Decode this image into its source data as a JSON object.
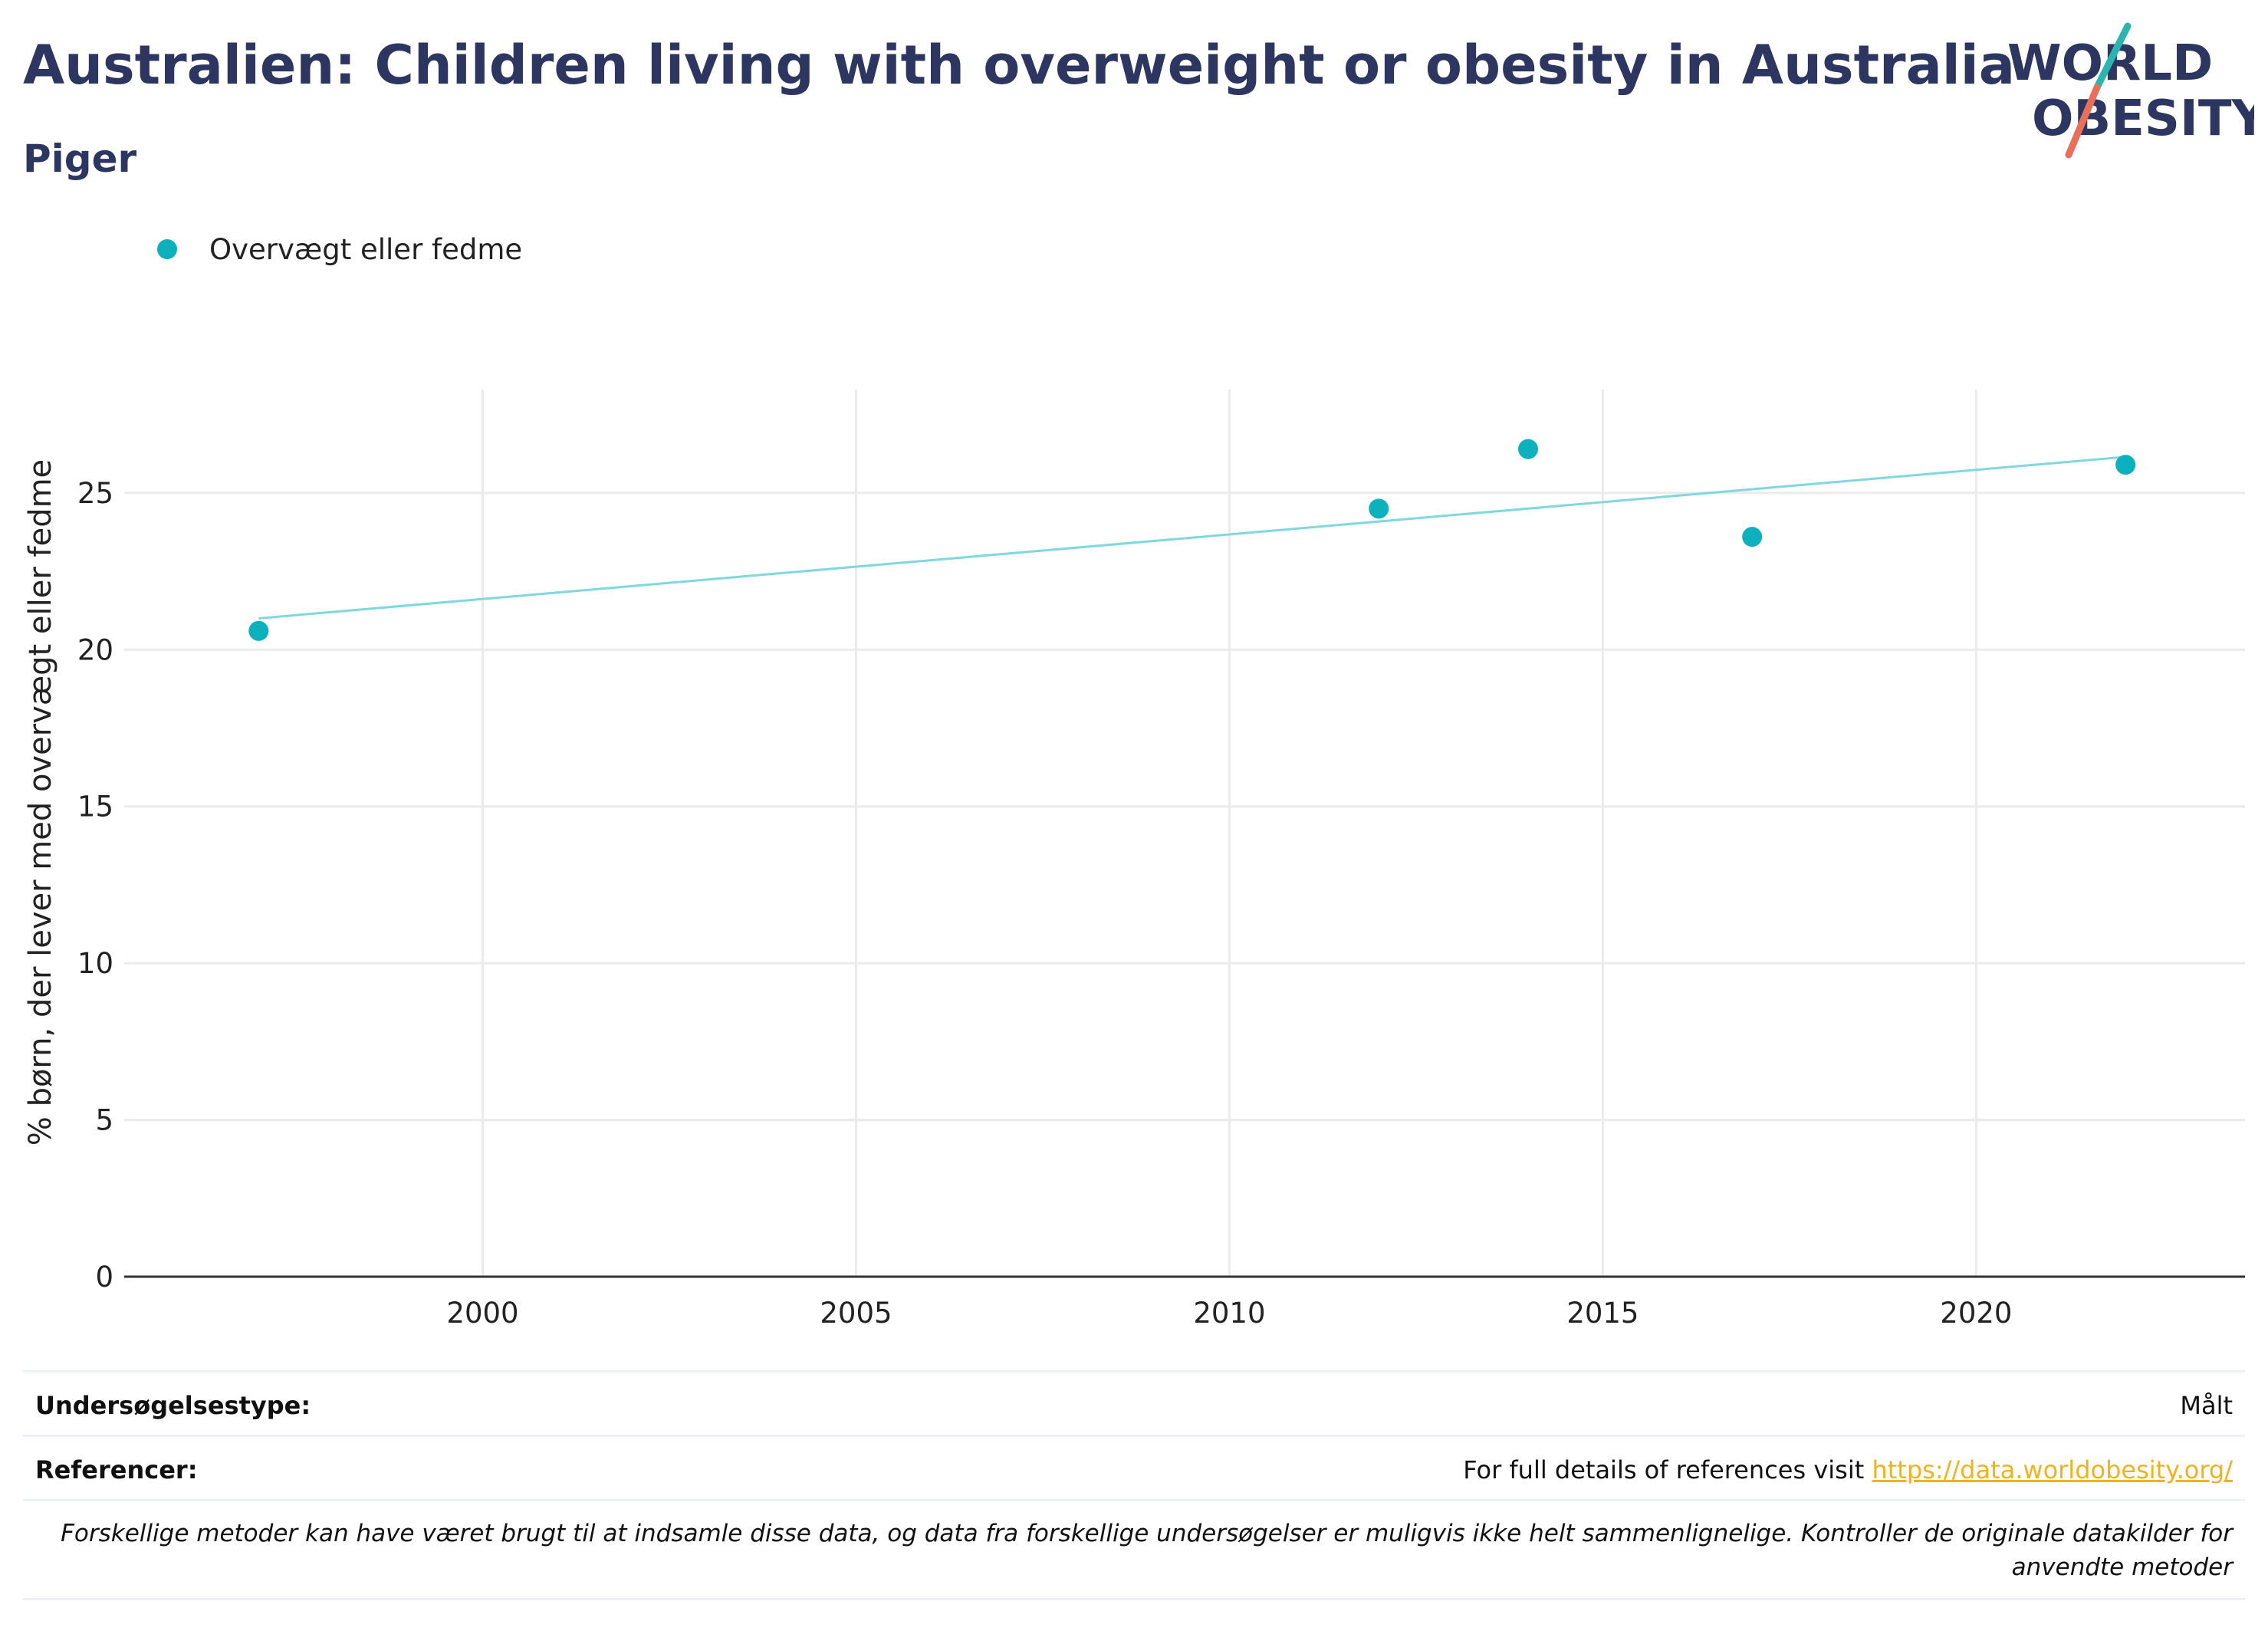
{
  "header": {
    "title": "Australien: Children living with overweight or obesity in Australia",
    "subtitle": "Piger",
    "logo_line1": "WORLD",
    "logo_line2": "OBESITY"
  },
  "legend": {
    "label": "Overvægt eller fedme"
  },
  "colors": {
    "accent": "#0cb1bd",
    "trend": "#7fd8de",
    "title": "#2d3561",
    "link": "#f0b31e",
    "logo_teal": "#2bb5ae",
    "logo_coral": "#e8705a"
  },
  "chart_data": {
    "type": "scatter",
    "title": "Australien: Children living with overweight or obesity in Australia",
    "subtitle": "Piger",
    "xlabel": "",
    "ylabel": "% børn, der lever med overvægt eller fedme",
    "xlim": [
      1995.2,
      2023.6
    ],
    "ylim": [
      0,
      28.3
    ],
    "x_ticks": [
      2000,
      2005,
      2010,
      2015,
      2020
    ],
    "y_ticks": [
      0,
      5,
      10,
      15,
      20,
      25
    ],
    "grid": true,
    "legend_position": "top-left",
    "series": [
      {
        "name": "Overvægt eller fedme",
        "x": [
          1997,
          2012,
          2014,
          2017,
          2022
        ],
        "y": [
          20.6,
          24.5,
          26.4,
          23.6,
          25.9
        ]
      }
    ],
    "trendline": {
      "x": [
        1997,
        2022
      ],
      "y": [
        21.0,
        26.15
      ]
    }
  },
  "footer": {
    "survey_type_label": "Undersøgelsestype:",
    "survey_type_value": "Målt",
    "references_label": "Referencer:",
    "references_text": "For full details of references visit ",
    "references_link": "https://data.worldobesity.org/",
    "note": "Forskellige metoder kan have været brugt til at indsamle disse data, og data fra forskellige undersøgelser er muligvis ikke helt sammenlignelige. Kontroller de originale datakilder for anvendte metoder"
  }
}
